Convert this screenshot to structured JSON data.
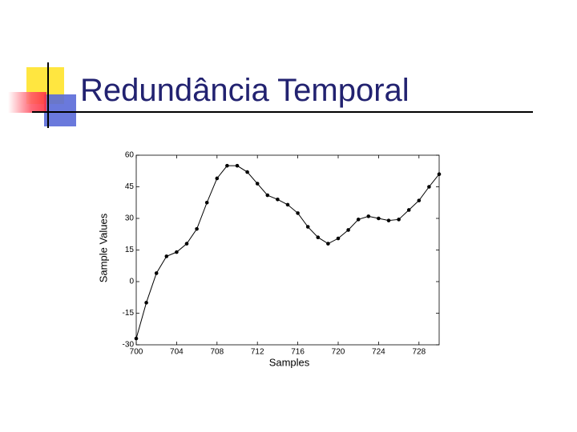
{
  "title": "Redundância Temporal",
  "chart_data": {
    "type": "line",
    "x_label": "Samples",
    "y_label": "Sample Values",
    "x": [
      700,
      701,
      702,
      703,
      704,
      705,
      706,
      707,
      708,
      709,
      710,
      711,
      712,
      713,
      714,
      715,
      716,
      717,
      718,
      719,
      720,
      721,
      722,
      723,
      724,
      725,
      726,
      727,
      728,
      729,
      730
    ],
    "series": [
      {
        "name": "Sample Values",
        "color": "#000000",
        "values": [
          -27,
          -10,
          4,
          12,
          14,
          18,
          25,
          37.5,
          49,
          55,
          55,
          52,
          46.5,
          41,
          39,
          36.5,
          32.5,
          26,
          21,
          18,
          20.5,
          24.5,
          29.5,
          31,
          30,
          29,
          29.5,
          34,
          38.5,
          45,
          51
        ]
      }
    ],
    "xlim": [
      700,
      730
    ],
    "xticks": [
      700,
      704,
      708,
      712,
      716,
      720,
      724,
      728
    ],
    "ylim": [
      -30,
      60
    ],
    "yticks": [
      -30,
      -15,
      0,
      15,
      30,
      45,
      60
    ]
  }
}
